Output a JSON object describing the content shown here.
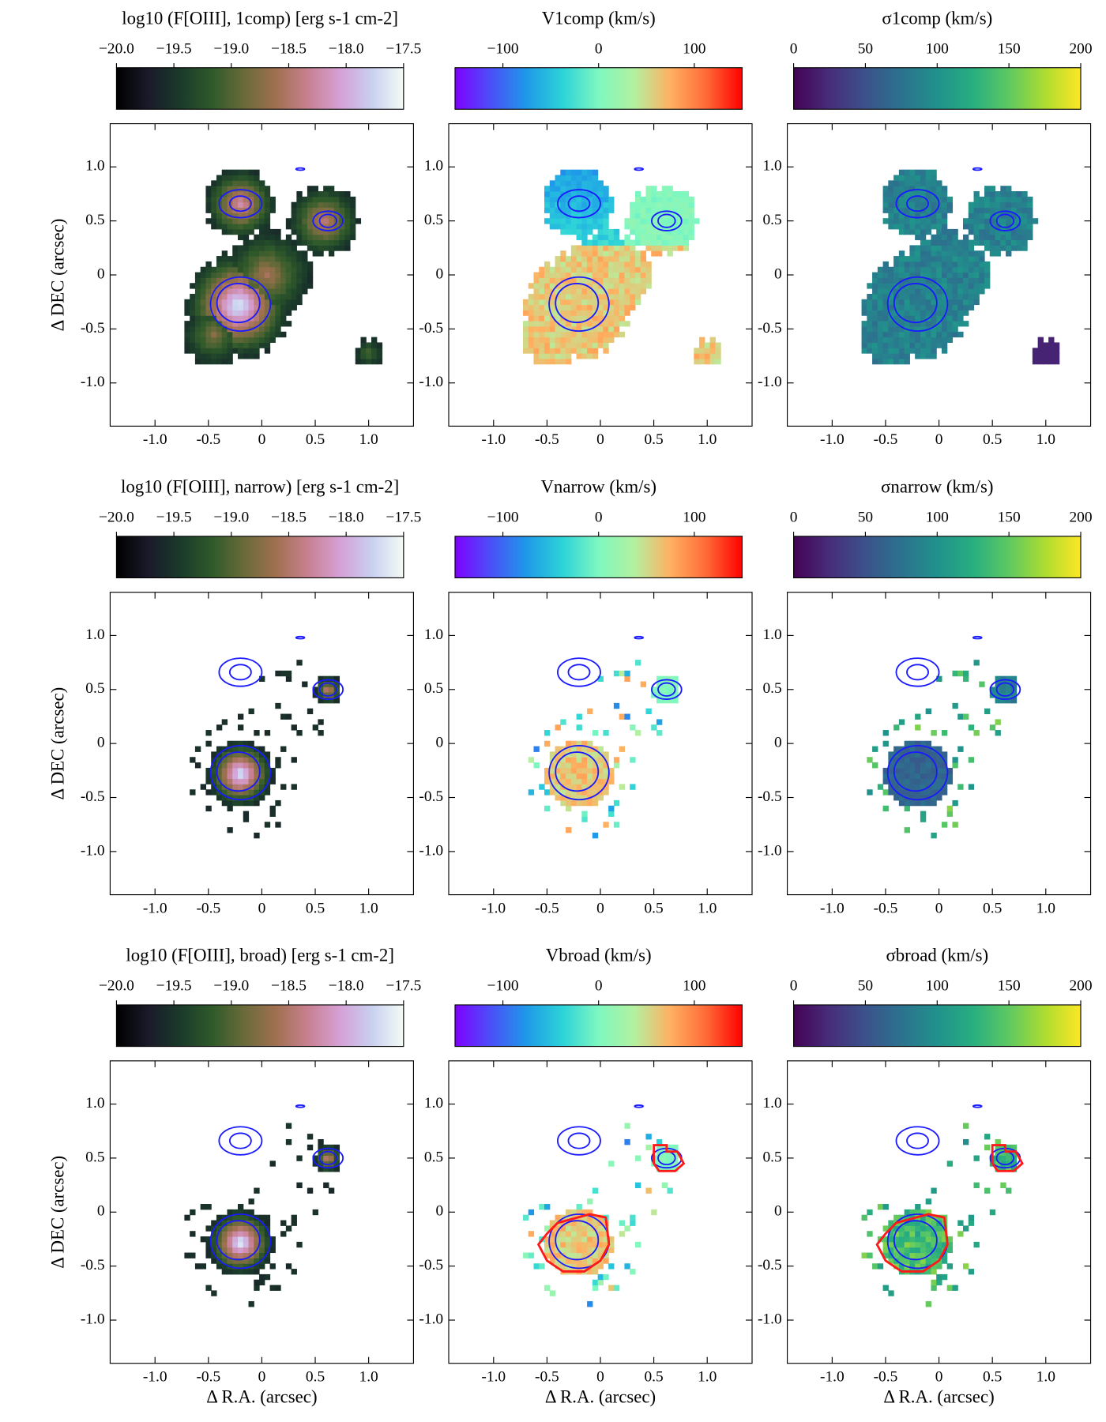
{
  "chart_data": [
    {
      "type": "heatmap",
      "title": "log10 (F[OIII], 1comp) [erg s-1 cm-2]",
      "colorbar": {
        "cmap": "cubehelix",
        "lim": [
          -20,
          -17.5
        ],
        "ticks": [
          {
            "value": -20,
            "label": "−20.0"
          },
          {
            "value": -19.5,
            "label": "−19.5"
          },
          {
            "value": -19,
            "label": "−19.0"
          },
          {
            "value": -18.5,
            "label": "−18.5"
          },
          {
            "value": -18,
            "label": "−18.0"
          },
          {
            "value": -17.5,
            "label": "−17.5"
          }
        ]
      },
      "contour_color": "#1a1aff",
      "ylabel": "Δ DEC (arcsec)",
      "xlim": [
        -1.42,
        1.42
      ],
      "ylim": [
        -1.4,
        1.4
      ],
      "xticks": [
        {
          "value": -1,
          "label": "-1.0"
        },
        -0.5,
        0,
        0.5,
        {
          "value": 1,
          "label": "1.0"
        }
      ],
      "yticks": [
        {
          "value": -1,
          "label": "-1.0"
        },
        -0.5,
        0,
        0.5,
        {
          "value": 1,
          "label": "1.0"
        }
      ]
    },
    {
      "type": "heatmap",
      "title": "V1comp (km/s)",
      "colorbar": {
        "cmap": "rainbow",
        "lim": [
          -150,
          150
        ],
        "ticks": [
          {
            "value": -100,
            "label": "−100"
          },
          0,
          100
        ]
      },
      "contour_color": "#1a1aff",
      "xlim": [
        -1.42,
        1.42
      ],
      "ylim": [
        -1.4,
        1.4
      ],
      "xticks": [
        {
          "value": -1,
          "label": "-1.0"
        },
        -0.5,
        0,
        0.5,
        {
          "value": 1,
          "label": "1.0"
        }
      ],
      "yticks": [
        {
          "value": -1,
          "label": "-1.0"
        },
        -0.5,
        0,
        0.5,
        {
          "value": 1,
          "label": "1.0"
        }
      ]
    },
    {
      "type": "heatmap",
      "title": "σ1comp (km/s)",
      "colorbar": {
        "cmap": "viridis",
        "lim": [
          0,
          200
        ],
        "ticks": [
          0,
          50,
          100,
          150,
          200
        ]
      },
      "contour_color": "#1a1aff",
      "xlim": [
        -1.42,
        1.42
      ],
      "ylim": [
        -1.4,
        1.4
      ],
      "xticks": [
        {
          "value": -1,
          "label": "-1.0"
        },
        -0.5,
        0,
        0.5,
        {
          "value": 1,
          "label": "1.0"
        }
      ],
      "yticks": [
        {
          "value": -1,
          "label": "-1.0"
        },
        -0.5,
        0,
        0.5,
        {
          "value": 1,
          "label": "1.0"
        }
      ]
    },
    {
      "type": "heatmap",
      "title": "log10 (F[OIII], narrow) [erg s-1 cm-2]",
      "colorbar": {
        "cmap": "cubehelix",
        "lim": [
          -20,
          -17.5
        ],
        "ticks": [
          {
            "value": -20,
            "label": "−20.0"
          },
          {
            "value": -19.5,
            "label": "−19.5"
          },
          {
            "value": -19,
            "label": "−19.0"
          },
          {
            "value": -18.5,
            "label": "−18.5"
          },
          {
            "value": -18,
            "label": "−18.0"
          },
          {
            "value": -17.5,
            "label": "−17.5"
          }
        ]
      },
      "contour_color": "#1a1aff",
      "ylabel": "Δ DEC (arcsec)",
      "xlim": [
        -1.42,
        1.42
      ],
      "ylim": [
        -1.4,
        1.4
      ],
      "xticks": [
        {
          "value": -1,
          "label": "-1.0"
        },
        -0.5,
        0,
        0.5,
        {
          "value": 1,
          "label": "1.0"
        }
      ],
      "yticks": [
        {
          "value": -1,
          "label": "-1.0"
        },
        -0.5,
        0,
        0.5,
        {
          "value": 1,
          "label": "1.0"
        }
      ]
    },
    {
      "type": "heatmap",
      "title": "Vnarrow (km/s)",
      "colorbar": {
        "cmap": "rainbow",
        "lim": [
          -150,
          150
        ],
        "ticks": [
          {
            "value": -100,
            "label": "−100"
          },
          0,
          100
        ]
      },
      "contour_color": "#1a1aff",
      "xlim": [
        -1.42,
        1.42
      ],
      "ylim": [
        -1.4,
        1.4
      ],
      "xticks": [
        {
          "value": -1,
          "label": "-1.0"
        },
        -0.5,
        0,
        0.5,
        {
          "value": 1,
          "label": "1.0"
        }
      ],
      "yticks": [
        {
          "value": -1,
          "label": "-1.0"
        },
        -0.5,
        0,
        0.5,
        {
          "value": 1,
          "label": "1.0"
        }
      ]
    },
    {
      "type": "heatmap",
      "title": "σnarrow (km/s)",
      "colorbar": {
        "cmap": "viridis",
        "lim": [
          0,
          200
        ],
        "ticks": [
          0,
          50,
          100,
          150,
          200
        ]
      },
      "contour_color": "#1a1aff",
      "xlim": [
        -1.42,
        1.42
      ],
      "ylim": [
        -1.4,
        1.4
      ],
      "xticks": [
        {
          "value": -1,
          "label": "-1.0"
        },
        -0.5,
        0,
        0.5,
        {
          "value": 1,
          "label": "1.0"
        }
      ],
      "yticks": [
        {
          "value": -1,
          "label": "-1.0"
        },
        -0.5,
        0,
        0.5,
        {
          "value": 1,
          "label": "1.0"
        }
      ]
    },
    {
      "type": "heatmap",
      "title": "log10 (F[OIII], broad) [erg s-1 cm-2]",
      "colorbar": {
        "cmap": "cubehelix",
        "lim": [
          -20,
          -17.5
        ],
        "ticks": [
          {
            "value": -20,
            "label": "−20.0"
          },
          {
            "value": -19.5,
            "label": "−19.5"
          },
          {
            "value": -19,
            "label": "−19.0"
          },
          {
            "value": -18.5,
            "label": "−18.5"
          },
          {
            "value": -18,
            "label": "−18.0"
          },
          {
            "value": -17.5,
            "label": "−17.5"
          }
        ]
      },
      "contour_color": "#1a1aff",
      "ylabel": "Δ DEC (arcsec)",
      "xlabel": "Δ R.A. (arcsec)",
      "xlim": [
        -1.42,
        1.42
      ],
      "ylim": [
        -1.4,
        1.4
      ],
      "xticks": [
        {
          "value": -1,
          "label": "-1.0"
        },
        -0.5,
        0,
        0.5,
        {
          "value": 1,
          "label": "1.0"
        }
      ],
      "yticks": [
        {
          "value": -1,
          "label": "-1.0"
        },
        -0.5,
        0,
        0.5,
        {
          "value": 1,
          "label": "1.0"
        }
      ]
    },
    {
      "type": "heatmap",
      "title": "Vbroad (km/s)",
      "colorbar": {
        "cmap": "rainbow",
        "lim": [
          -150,
          150
        ],
        "ticks": [
          {
            "value": -100,
            "label": "−100"
          },
          0,
          100
        ]
      },
      "contour_color": "#1a1aff",
      "outline_color": "#ff1a1a",
      "xlabel": "Δ R.A. (arcsec)",
      "xlim": [
        -1.42,
        1.42
      ],
      "ylim": [
        -1.4,
        1.4
      ],
      "xticks": [
        {
          "value": -1,
          "label": "-1.0"
        },
        -0.5,
        0,
        0.5,
        {
          "value": 1,
          "label": "1.0"
        }
      ],
      "yticks": [
        {
          "value": -1,
          "label": "-1.0"
        },
        -0.5,
        0,
        0.5,
        {
          "value": 1,
          "label": "1.0"
        }
      ]
    },
    {
      "type": "heatmap",
      "title": "σbroad (km/s)",
      "colorbar": {
        "cmap": "viridis",
        "lim": [
          0,
          200
        ],
        "ticks": [
          0,
          50,
          100,
          150,
          200
        ]
      },
      "contour_color": "#1a1aff",
      "outline_color": "#ff1a1a",
      "xlabel": "Δ R.A. (arcsec)",
      "xlim": [
        -1.42,
        1.42
      ],
      "ylim": [
        -1.4,
        1.4
      ],
      "xticks": [
        {
          "value": -1,
          "label": "-1.0"
        },
        -0.5,
        0,
        0.5,
        {
          "value": 1,
          "label": "1.0"
        }
      ],
      "yticks": [
        {
          "value": -1,
          "label": "-1.0"
        },
        -0.5,
        0,
        0.5,
        {
          "value": 1,
          "label": "1.0"
        }
      ]
    }
  ]
}
